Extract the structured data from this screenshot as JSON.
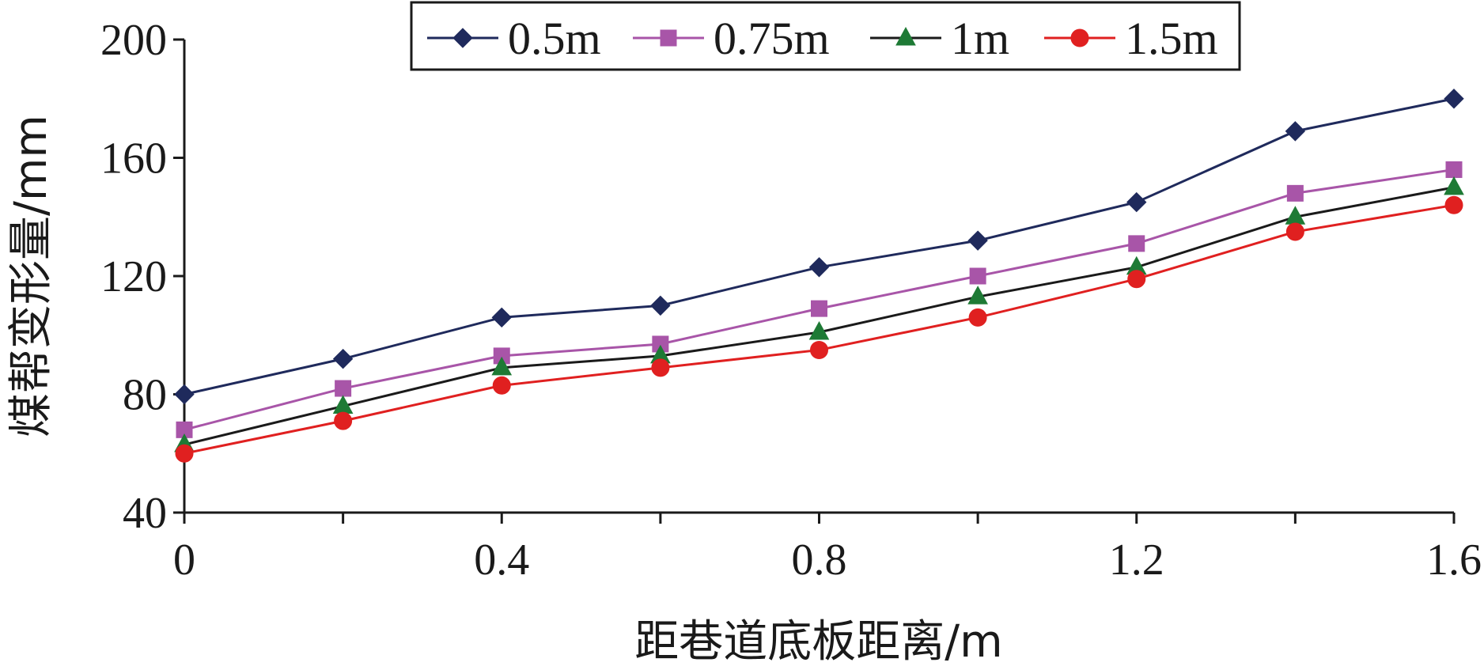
{
  "chart_data": {
    "type": "line",
    "xlabel": "距巷道底板距离/m",
    "ylabel": "煤帮变形量/mm",
    "xlim": [
      0,
      1.6
    ],
    "ylim": [
      40,
      200
    ],
    "xticks": [
      "0",
      "0.4",
      "0.8",
      "1.2",
      "1.6"
    ],
    "yticks": [
      "40",
      "80",
      "120",
      "160",
      "200"
    ],
    "x": [
      0,
      0.2,
      0.4,
      0.6,
      0.8,
      1.0,
      1.2,
      1.4,
      1.6
    ],
    "grid": false,
    "legend_position": "top",
    "series": [
      {
        "name": "0.5m",
        "marker": "diamond",
        "color": "#1f2a5c",
        "line_color": "#1f2a5c",
        "values": [
          80,
          92,
          106,
          110,
          123,
          132,
          145,
          169,
          180
        ]
      },
      {
        "name": "0.75m",
        "marker": "square",
        "color": "#a855a8",
        "line_color": "#a855a8",
        "values": [
          68,
          82,
          93,
          97,
          109,
          120,
          131,
          148,
          156
        ]
      },
      {
        "name": "1m",
        "marker": "triangle",
        "color": "#1e7a35",
        "line_color": "#1a1a1a",
        "values": [
          63,
          76,
          89,
          93,
          101,
          113,
          123,
          140,
          150
        ]
      },
      {
        "name": "1.5m",
        "marker": "circle",
        "color": "#e02020",
        "line_color": "#e02020",
        "values": [
          60,
          71,
          83,
          89,
          95,
          106,
          119,
          135,
          144
        ]
      }
    ]
  }
}
